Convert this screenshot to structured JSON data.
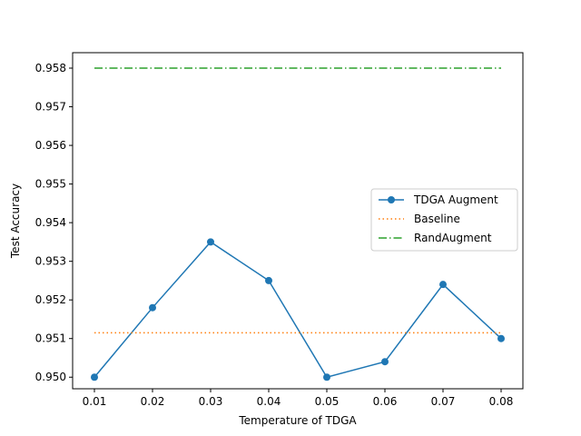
{
  "chart_data": {
    "type": "line",
    "title": "",
    "xlabel": "Temperature of TDGA",
    "ylabel": "Test Accuracy",
    "x": [
      0.01,
      0.02,
      0.03,
      0.04,
      0.05,
      0.06,
      0.07,
      0.08
    ],
    "xticks": [
      "0.01",
      "0.02",
      "0.03",
      "0.04",
      "0.05",
      "0.06",
      "0.07",
      "0.08"
    ],
    "yticks": [
      "0.950",
      "0.951",
      "0.952",
      "0.953",
      "0.954",
      "0.955",
      "0.956",
      "0.957",
      "0.958"
    ],
    "xlim": [
      0.00625,
      0.08375
    ],
    "ylim": [
      0.9497,
      0.9584
    ],
    "grid": false,
    "legend_position": "center-right",
    "series": [
      {
        "name": "TDGA Augment",
        "style": "solid",
        "marker": "circle",
        "color": "#1f77b4",
        "values": [
          0.95,
          0.9518,
          0.9535,
          0.9525,
          0.95,
          0.9504,
          0.9524,
          0.951
        ]
      },
      {
        "name": "Baseline",
        "style": "dotted",
        "color": "#ff7f0e",
        "values": [
          0.95115,
          0.95115,
          0.95115,
          0.95115,
          0.95115,
          0.95115,
          0.95115,
          0.95115
        ]
      },
      {
        "name": "RandAugment",
        "style": "dashdot",
        "color": "#2ca02c",
        "values": [
          0.958,
          0.958,
          0.958,
          0.958,
          0.958,
          0.958,
          0.958,
          0.958
        ]
      }
    ]
  }
}
